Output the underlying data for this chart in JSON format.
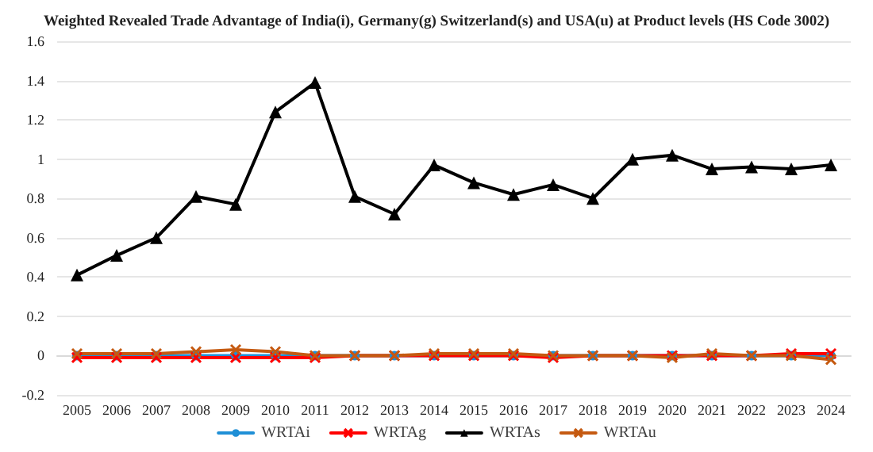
{
  "chart_data": {
    "type": "line",
    "title": "Weighted Revealed Trade Advantage of India(i), Germany(g) Switzerland(s) and USA(u) at Product levels (HS Code 3002)",
    "categories": [
      "2005",
      "2006",
      "2007",
      "2008",
      "2009",
      "2010",
      "2011",
      "2012",
      "2013",
      "2014",
      "2015",
      "2016",
      "2017",
      "2018",
      "2019",
      "2020",
      "2021",
      "2022",
      "2023",
      "2024"
    ],
    "series": [
      {
        "name": "WRTAi",
        "color": "#1f8fd6",
        "marker": "circle",
        "values": [
          0,
          0,
          0,
          0,
          0,
          0,
          0,
          0,
          0,
          0,
          0,
          0,
          0,
          0,
          0,
          0,
          0,
          0,
          0,
          0
        ]
      },
      {
        "name": "WRTAg",
        "color": "#ff0000",
        "marker": "cross",
        "values": [
          -0.01,
          -0.01,
          -0.01,
          -0.01,
          -0.01,
          -0.01,
          -0.01,
          0,
          0,
          0,
          0,
          0,
          -0.01,
          0,
          0,
          0,
          0,
          0,
          0.01,
          0.01
        ]
      },
      {
        "name": "WRTAs",
        "color": "#000000",
        "marker": "triangle",
        "values": [
          0.41,
          0.51,
          0.6,
          0.81,
          0.77,
          1.24,
          1.39,
          0.81,
          0.72,
          0.97,
          0.88,
          0.82,
          0.87,
          0.8,
          1.0,
          1.02,
          0.95,
          0.96,
          0.95,
          0.97
        ]
      },
      {
        "name": "WRTAu",
        "color": "#c55a11",
        "marker": "cross",
        "values": [
          0.01,
          0.01,
          0.01,
          0.02,
          0.03,
          0.02,
          0,
          0,
          0,
          0.01,
          0.01,
          0.01,
          0,
          0,
          0,
          -0.01,
          0.01,
          0,
          0,
          -0.02
        ]
      }
    ],
    "ylim": [
      -0.2,
      1.6
    ],
    "yticks": [
      -0.2,
      0,
      0.2,
      0.4,
      0.6,
      0.8,
      1,
      1.2,
      1.4,
      1.6
    ],
    "grid": "y",
    "legend": "bottom"
  }
}
